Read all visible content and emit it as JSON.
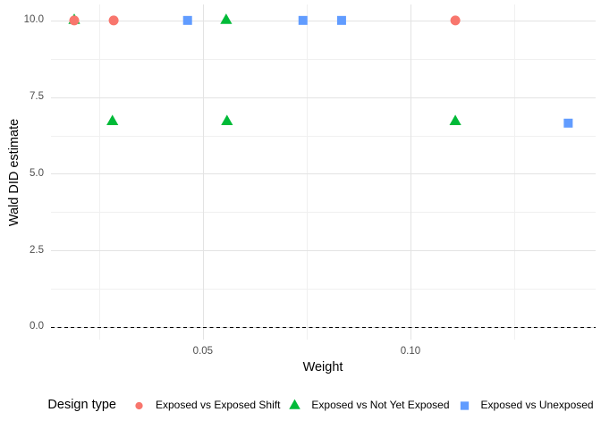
{
  "chart_data": {
    "type": "scatter",
    "xlabel": "Weight",
    "ylabel": "Wald DID estimate",
    "legend_title": "Design type",
    "legend_position": "bottom",
    "grid": true,
    "background": "#ffffff",
    "xlim": [
      0.0134,
      0.1446
    ],
    "ylim": [
      -0.41,
      10.52
    ],
    "x_ticks": [
      {
        "value": 0.05,
        "label": "0.05"
      },
      {
        "value": 0.1,
        "label": "0.10"
      }
    ],
    "y_ticks": [
      {
        "value": 0,
        "label": "0.0"
      },
      {
        "value": 2.5,
        "label": "2.5"
      },
      {
        "value": 5,
        "label": "5.0"
      },
      {
        "value": 7.5,
        "label": "7.5"
      },
      {
        "value": 10,
        "label": "10.0"
      }
    ],
    "x_minor": [
      0.025,
      0.075,
      0.125
    ],
    "y_minor": [
      1.25,
      3.75,
      6.25,
      8.75
    ],
    "reference_line": {
      "y": 0,
      "style": "dashed",
      "color": "#000000"
    },
    "series": [
      {
        "name": "Exposed vs Exposed Shift",
        "marker": "circle",
        "color": "#F8766D",
        "points": [
          {
            "x": 0.019,
            "y": 10.0
          },
          {
            "x": 0.0285,
            "y": 10.0
          },
          {
            "x": 0.1108,
            "y": 10.0
          }
        ]
      },
      {
        "name": "Exposed vs Not Yet Exposed",
        "marker": "triangle",
        "color": "#00BA38",
        "points": [
          {
            "x": 0.019,
            "y": 10.0
          },
          {
            "x": 0.0556,
            "y": 10.0
          },
          {
            "x": 0.0282,
            "y": 6.7
          },
          {
            "x": 0.0558,
            "y": 6.7
          },
          {
            "x": 0.1108,
            "y": 6.7
          }
        ]
      },
      {
        "name": "Exposed vs Unexposed",
        "marker": "square",
        "color": "#619CFF",
        "points": [
          {
            "x": 0.0463,
            "y": 10.0
          },
          {
            "x": 0.0741,
            "y": 10.0
          },
          {
            "x": 0.0834,
            "y": 10.0
          },
          {
            "x": 0.138,
            "y": 6.65
          }
        ]
      }
    ]
  }
}
